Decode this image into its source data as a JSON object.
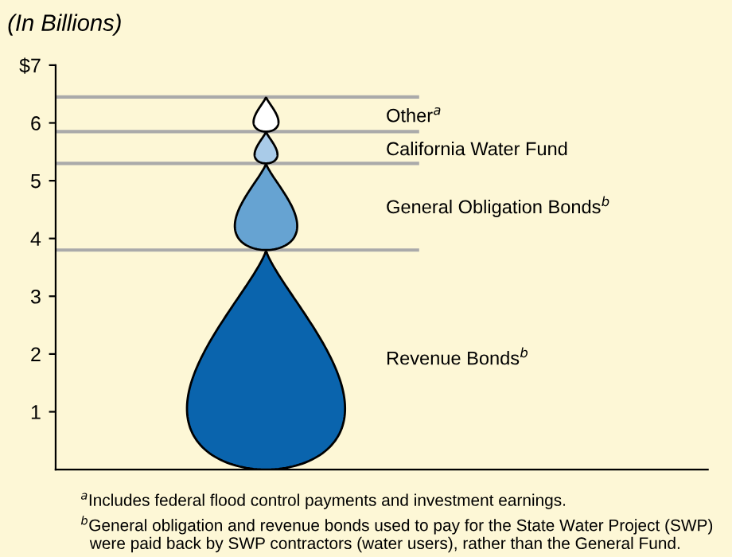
{
  "chart_data": {
    "type": "bar",
    "stacked": true,
    "title": "(In Billions)",
    "categories": [
      null
    ],
    "series": [
      {
        "name": "Revenue Bonds$^{b}$",
        "color": "#0a64ad",
        "values": [
          3.8
        ]
      },
      {
        "name": "General Obligation Bonds$^{b}$",
        "color": "#66a3d2",
        "values": [
          1.5
        ]
      },
      {
        "name": "California Water Fund",
        "color": "#a9cbe8",
        "values": [
          0.55
        ]
      },
      {
        "name": "Other$^{a}$",
        "color": "#ffffff",
        "values": [
          0.6
        ]
      }
    ],
    "ylim": [
      0,
      7
    ],
    "yticks": [
      1,
      2,
      3,
      4,
      5,
      6,
      {
        "value": 7,
        "label": "$7"
      }
    ],
    "grid": false,
    "legend": false,
    "annotations": [
      "$^{a}$Includes federal flood control payments and investment earnings.",
      "$^{b}$General obligation and revenue bonds used to pay for the State Water Project (SWP)\n  were paid back by SWP contractors (water users), rather than the General Fund."
    ]
  }
}
